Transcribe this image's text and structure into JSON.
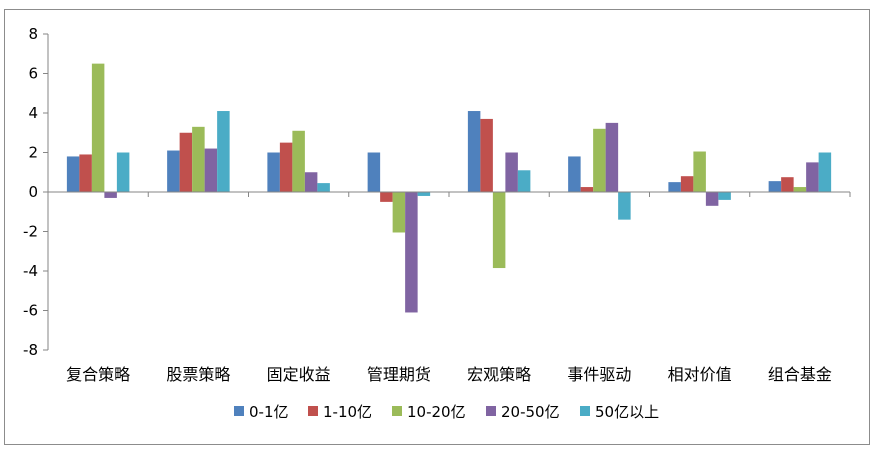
{
  "chart_data": {
    "type": "bar",
    "title": "",
    "xlabel": "",
    "ylabel": "",
    "ylim": [
      -8,
      8
    ],
    "yticks": [
      -8,
      -6,
      -4,
      -2,
      0,
      2,
      4,
      6,
      8
    ],
    "grid": false,
    "legend_position": "bottom",
    "categories": [
      "复合策略",
      "股票策略",
      "固定收益",
      "管理期货",
      "宏观策略",
      "事件驱动",
      "相对价值",
      "组合基金"
    ],
    "series": [
      {
        "name": "0-1亿",
        "color": "#4f81bd",
        "values": [
          1.8,
          2.1,
          2.0,
          2.0,
          4.1,
          1.8,
          0.5,
          0.55
        ]
      },
      {
        "name": "1-10亿",
        "color": "#c0504d",
        "values": [
          1.9,
          3.0,
          2.5,
          -0.5,
          3.7,
          0.25,
          0.8,
          0.75
        ]
      },
      {
        "name": "10-20亿",
        "color": "#9bbb59",
        "values": [
          6.5,
          3.3,
          3.1,
          -2.05,
          -3.85,
          3.2,
          2.05,
          0.25
        ]
      },
      {
        "name": "20-50亿",
        "color": "#8064a2",
        "values": [
          -0.3,
          2.2,
          1.0,
          -6.1,
          2.0,
          3.5,
          -0.7,
          1.5
        ]
      },
      {
        "name": "50亿以上",
        "color": "#4bacc6",
        "values": [
          2.0,
          4.1,
          0.45,
          -0.2,
          1.1,
          -1.4,
          -0.4,
          2.0
        ]
      }
    ]
  }
}
